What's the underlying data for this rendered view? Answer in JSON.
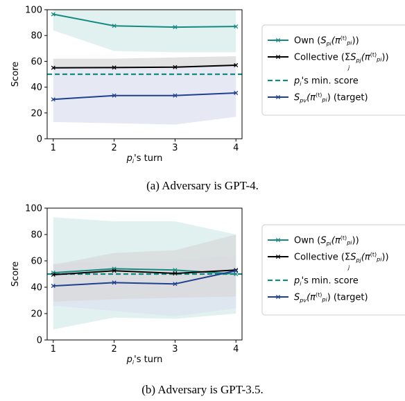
{
  "chart_data": [
    {
      "type": "line",
      "caption": "(a) Adversary is GPT-4.",
      "xlabel": "p_i's turn",
      "ylabel": "Score",
      "x": [
        1,
        2,
        3,
        4
      ],
      "xticks": [
        "1",
        "2",
        "3",
        "4"
      ],
      "yticks": [
        "0",
        "20",
        "40",
        "60",
        "80",
        "100"
      ],
      "ylim": [
        0,
        100
      ],
      "grid": false,
      "legend_position": "right, outside",
      "reference_line": {
        "name": "p_i's min. score",
        "value": 50
      },
      "series": [
        {
          "key": "own",
          "name": "Own",
          "values": [
            96.5,
            87.5,
            86.5,
            87
          ],
          "band_low": [
            84,
            68,
            67,
            67
          ],
          "band_high": [
            100,
            100,
            100,
            100
          ],
          "color": "#138a80"
        },
        {
          "key": "collective",
          "name": "Collective",
          "values": [
            55,
            55.2,
            55.5,
            57
          ],
          "band_low": [
            55,
            55.2,
            55.5,
            57
          ],
          "band_high": [
            62,
            62,
            63,
            64
          ],
          "color": "#000000"
        },
        {
          "key": "target",
          "name": "(target)",
          "values": [
            30.5,
            33.5,
            33.5,
            35.5
          ],
          "band_low": [
            13,
            12,
            11,
            17
          ],
          "band_high": [
            55,
            55.2,
            55.5,
            57
          ],
          "color": "#1f3f8f"
        }
      ]
    },
    {
      "type": "line",
      "caption": "(b) Adversary is GPT-3.5.",
      "xlabel": "p_i's turn",
      "ylabel": "Score",
      "x": [
        1,
        2,
        3,
        4
      ],
      "xticks": [
        "1",
        "2",
        "3",
        "4"
      ],
      "yticks": [
        "0",
        "20",
        "40",
        "60",
        "80",
        "100"
      ],
      "ylim": [
        0,
        100
      ],
      "grid": false,
      "legend_position": "right, outside",
      "reference_line": {
        "name": "p_i's min. score",
        "value": 50
      },
      "series": [
        {
          "key": "own",
          "name": "Own",
          "values": [
            51,
            54,
            53,
            50
          ],
          "band_low": [
            8,
            17,
            16,
            20
          ],
          "band_high": [
            93,
            90,
            90,
            80
          ],
          "color": "#138a80"
        },
        {
          "key": "collective",
          "name": "Collective",
          "values": [
            49.5,
            52.5,
            50.5,
            53
          ],
          "band_low": [
            29,
            31,
            32,
            33
          ],
          "band_high": [
            57,
            66,
            68,
            80
          ],
          "color": "#000000"
        },
        {
          "key": "target",
          "name": "(target)",
          "values": [
            41,
            43.5,
            42.5,
            52.5
          ],
          "band_low": [
            26,
            22,
            18,
            24
          ],
          "band_high": [
            58,
            60,
            60,
            64
          ],
          "color": "#1f3f8f"
        }
      ]
    }
  ],
  "band_colors": {
    "own": "#d6ecea",
    "collective": "#d8d8da",
    "target": "#dde2f0"
  },
  "ref_line_color": "#138a80"
}
